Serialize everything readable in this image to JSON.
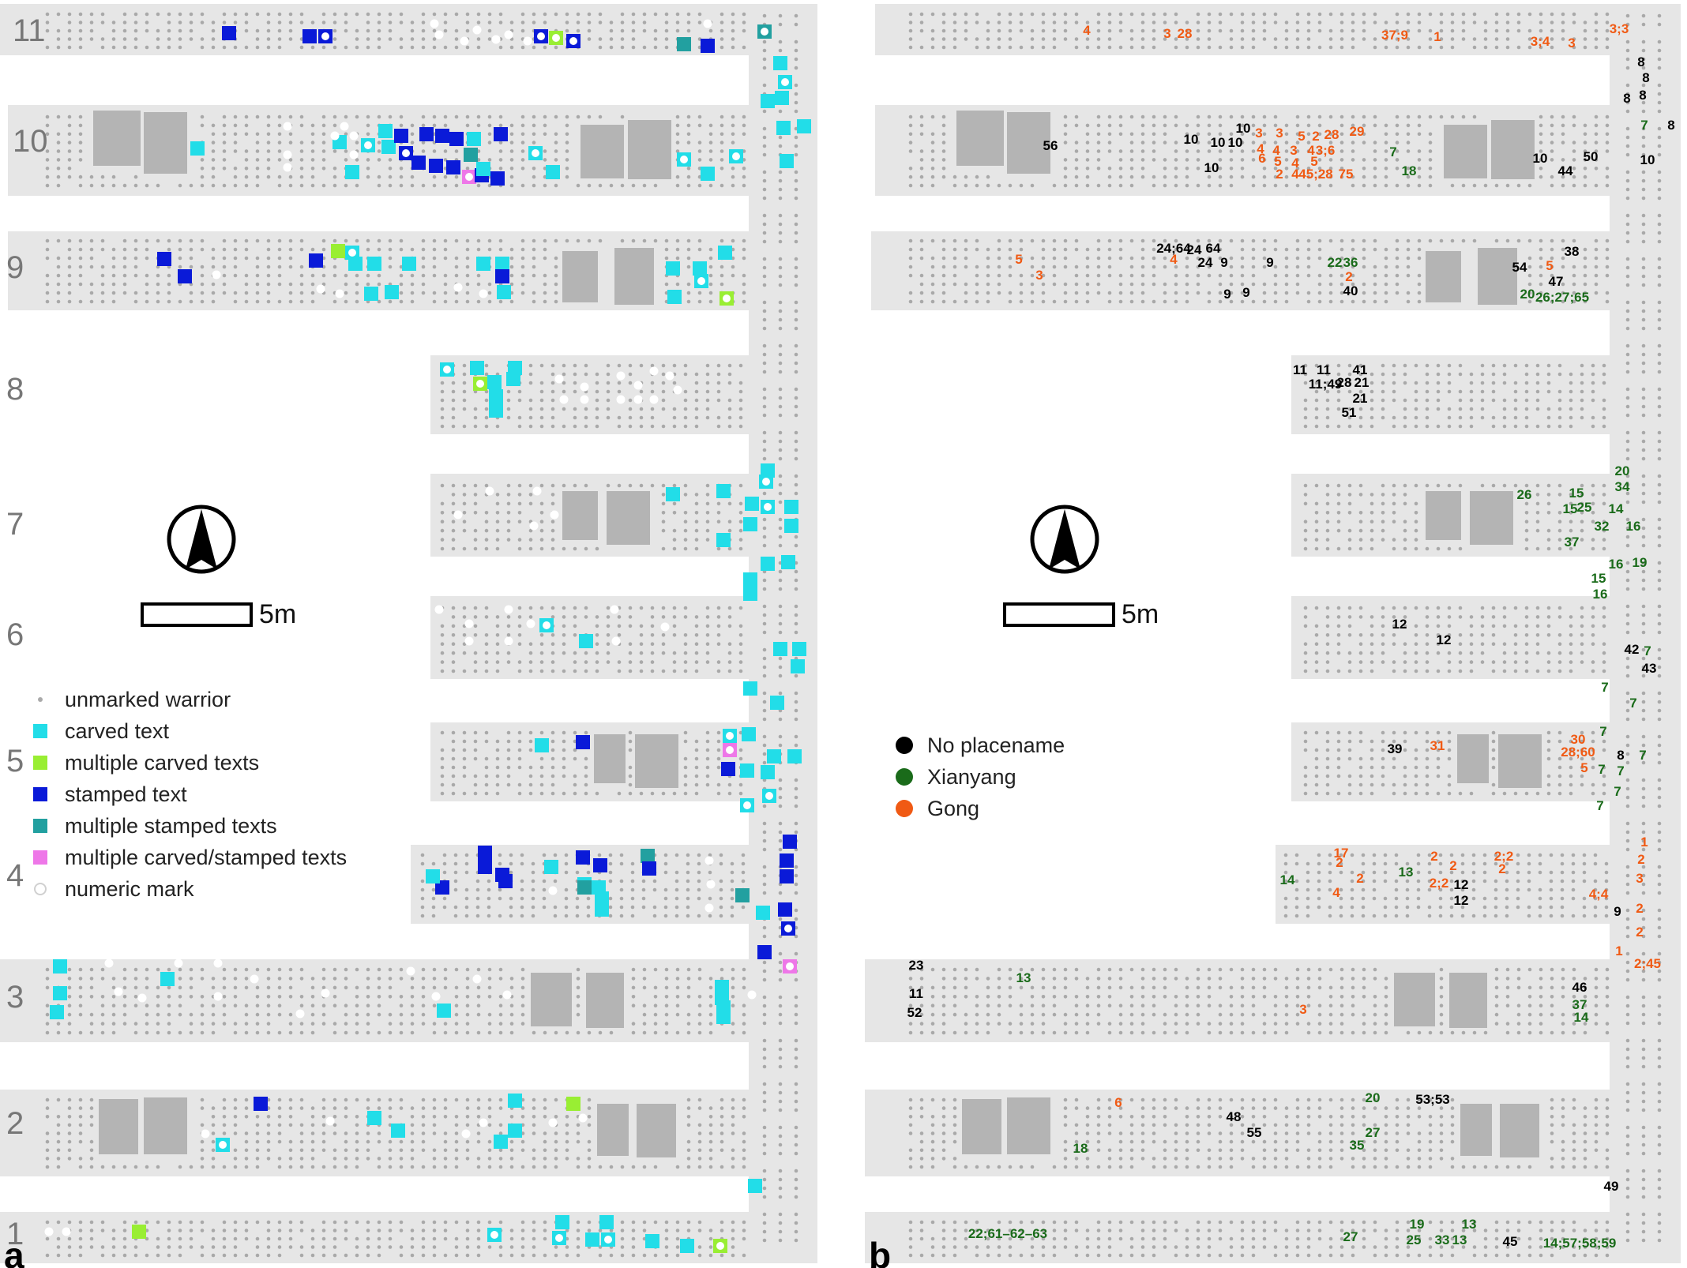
{
  "panel_a": {
    "letter": "a",
    "row_numbers": [
      "11",
      "10",
      "9",
      "8",
      "7",
      "6",
      "5",
      "4",
      "3",
      "2",
      "1"
    ],
    "scale_label": "5m",
    "legend": [
      {
        "label": "unmarked warrior",
        "symbol": "dot",
        "color": "#aaaaaa"
      },
      {
        "label": "carved text",
        "symbol": "square",
        "color": "#22dde8"
      },
      {
        "label": "multiple carved texts",
        "symbol": "square",
        "color": "#99ee33"
      },
      {
        "label": "stamped text",
        "symbol": "square",
        "color": "#0a1ad8"
      },
      {
        "label": "multiple stamped texts",
        "symbol": "square",
        "color": "#22a0a0"
      },
      {
        "label": "multiple carved/stamped texts",
        "symbol": "square",
        "color": "#ee77e8"
      },
      {
        "label": "numeric mark",
        "symbol": "ring",
        "color": "#ffffff"
      }
    ]
  },
  "panel_b": {
    "letter": "b",
    "scale_label": "5m",
    "legend": [
      {
        "label": "No placename",
        "color": "#000000"
      },
      {
        "label": "Xianyang",
        "color": "#1a6b1a"
      },
      {
        "label": "Gong",
        "color": "#f05a14"
      }
    ],
    "labels": [
      [
        "4",
        "g"
      ],
      [
        "3",
        "g"
      ],
      [
        "28",
        "g"
      ],
      [
        "37;9",
        "g"
      ],
      [
        "1",
        "g"
      ],
      [
        "3;4",
        "g"
      ],
      [
        "3",
        "g"
      ],
      [
        "3;3",
        "g"
      ],
      [
        "8",
        "n"
      ],
      [
        "8",
        "n"
      ],
      [
        "8",
        "n"
      ],
      [
        "8",
        "n"
      ],
      [
        "56",
        "n"
      ],
      [
        "10",
        "n"
      ],
      [
        "10",
        "n"
      ],
      [
        "10",
        "n"
      ],
      [
        "10",
        "n"
      ],
      [
        "10",
        "n"
      ],
      [
        "3",
        "g"
      ],
      [
        "3",
        "g"
      ],
      [
        "5",
        "g"
      ],
      [
        "2",
        "g"
      ],
      [
        "28",
        "g"
      ],
      [
        "29",
        "g"
      ],
      [
        "4",
        "g"
      ],
      [
        "4",
        "g"
      ],
      [
        "3",
        "g"
      ],
      [
        "4",
        "g"
      ],
      [
        "3;6",
        "g"
      ],
      [
        "6",
        "g"
      ],
      [
        "5",
        "g"
      ],
      [
        "4",
        "g"
      ],
      [
        "5",
        "g"
      ],
      [
        "2",
        "g"
      ],
      [
        "4",
        "g"
      ],
      [
        "45;28",
        "g"
      ],
      [
        "75",
        "g"
      ],
      [
        "7",
        "x"
      ],
      [
        "18",
        "x"
      ],
      [
        "7",
        "x"
      ],
      [
        "8",
        "n"
      ],
      [
        "10",
        "n"
      ],
      [
        "44",
        "n"
      ],
      [
        "50",
        "n"
      ],
      [
        "10",
        "n"
      ],
      [
        "24;64",
        "n"
      ],
      [
        "24",
        "n"
      ],
      [
        "64",
        "n"
      ],
      [
        "24",
        "n"
      ],
      [
        "9",
        "n"
      ],
      [
        "9",
        "n"
      ],
      [
        "4",
        "g"
      ],
      [
        "5",
        "g"
      ],
      [
        "3",
        "g"
      ],
      [
        "9",
        "n"
      ],
      [
        "9",
        "n"
      ],
      [
        "22",
        "x"
      ],
      [
        "36",
        "x"
      ],
      [
        "2",
        "g"
      ],
      [
        "40",
        "n"
      ],
      [
        "38",
        "n"
      ],
      [
        "54",
        "n"
      ],
      [
        "5",
        "g"
      ],
      [
        "47",
        "n"
      ],
      [
        "20",
        "x"
      ],
      [
        "26;27;65",
        "x"
      ],
      [
        "11",
        "n"
      ],
      [
        "11",
        "n"
      ],
      [
        "41",
        "n"
      ],
      [
        "11;49",
        "n"
      ],
      [
        "28",
        "n"
      ],
      [
        "21",
        "n"
      ],
      [
        "21",
        "n"
      ],
      [
        "51",
        "n"
      ],
      [
        "20",
        "x"
      ],
      [
        "34",
        "x"
      ],
      [
        "26",
        "x"
      ],
      [
        "15",
        "x"
      ],
      [
        "15",
        "x"
      ],
      [
        "25",
        "x"
      ],
      [
        "14",
        "x"
      ],
      [
        "32",
        "x"
      ],
      [
        "16",
        "x"
      ],
      [
        "37",
        "x"
      ],
      [
        "16",
        "x"
      ],
      [
        "19",
        "x"
      ],
      [
        "15",
        "x"
      ],
      [
        "16",
        "x"
      ],
      [
        "12",
        "n"
      ],
      [
        "12",
        "n"
      ],
      [
        "42",
        "n"
      ],
      [
        "7",
        "x"
      ],
      [
        "43",
        "n"
      ],
      [
        "7",
        "x"
      ],
      [
        "7",
        "x"
      ],
      [
        "39",
        "n"
      ],
      [
        "31",
        "g"
      ],
      [
        "30",
        "g"
      ],
      [
        "7",
        "x"
      ],
      [
        "28;60",
        "g"
      ],
      [
        "8",
        "n"
      ],
      [
        "7",
        "x"
      ],
      [
        "5",
        "g"
      ],
      [
        "7",
        "x"
      ],
      [
        "7",
        "x"
      ],
      [
        "7",
        "x"
      ],
      [
        "7",
        "x"
      ],
      [
        "17",
        "g"
      ],
      [
        "2",
        "g"
      ],
      [
        "14",
        "x"
      ],
      [
        "4",
        "g"
      ],
      [
        "2",
        "g"
      ],
      [
        "13",
        "x"
      ],
      [
        "2",
        "g"
      ],
      [
        "2",
        "g"
      ],
      [
        "2;2",
        "g"
      ],
      [
        "12",
        "n"
      ],
      [
        "12",
        "n"
      ],
      [
        "2;2",
        "g"
      ],
      [
        "2",
        "g"
      ],
      [
        "1",
        "g"
      ],
      [
        "2",
        "g"
      ],
      [
        "3",
        "g"
      ],
      [
        "4;4",
        "g"
      ],
      [
        "2",
        "g"
      ],
      [
        "9",
        "n"
      ],
      [
        "2",
        "g"
      ],
      [
        "23",
        "n"
      ],
      [
        "11",
        "n"
      ],
      [
        "52",
        "n"
      ],
      [
        "13",
        "x"
      ],
      [
        "3",
        "g"
      ],
      [
        "46",
        "n"
      ],
      [
        "37",
        "x"
      ],
      [
        "14",
        "x"
      ],
      [
        "1",
        "g"
      ],
      [
        "2;45",
        "g"
      ],
      [
        "6",
        "g"
      ],
      [
        "48",
        "n"
      ],
      [
        "55",
        "n"
      ],
      [
        "18",
        "x"
      ],
      [
        "20",
        "x"
      ],
      [
        "53;53",
        "n"
      ],
      [
        "27",
        "x"
      ],
      [
        "35",
        "x"
      ],
      [
        "49",
        "n"
      ],
      [
        "22;61–62–63",
        "x"
      ],
      [
        "27",
        "x"
      ],
      [
        "19",
        "x"
      ],
      [
        "25",
        "x"
      ],
      [
        "33",
        "x"
      ],
      [
        "13",
        "x"
      ],
      [
        "13",
        "x"
      ],
      [
        "45",
        "n"
      ],
      [
        "14;57;58;59",
        "x"
      ]
    ]
  },
  "colors": {
    "corridor": "#e6e6e6",
    "pillar": "#b4b4b4",
    "warrior": "#a9a9a9",
    "carved": "#22dde8",
    "multi_carved": "#99ee33",
    "stamped": "#0a1ad8",
    "multi_stamped": "#22a0a0",
    "multi_cs": "#ee77e8",
    "no_placename": "#000000",
    "xianyang": "#1a6b1a",
    "gong": "#f05a14"
  }
}
